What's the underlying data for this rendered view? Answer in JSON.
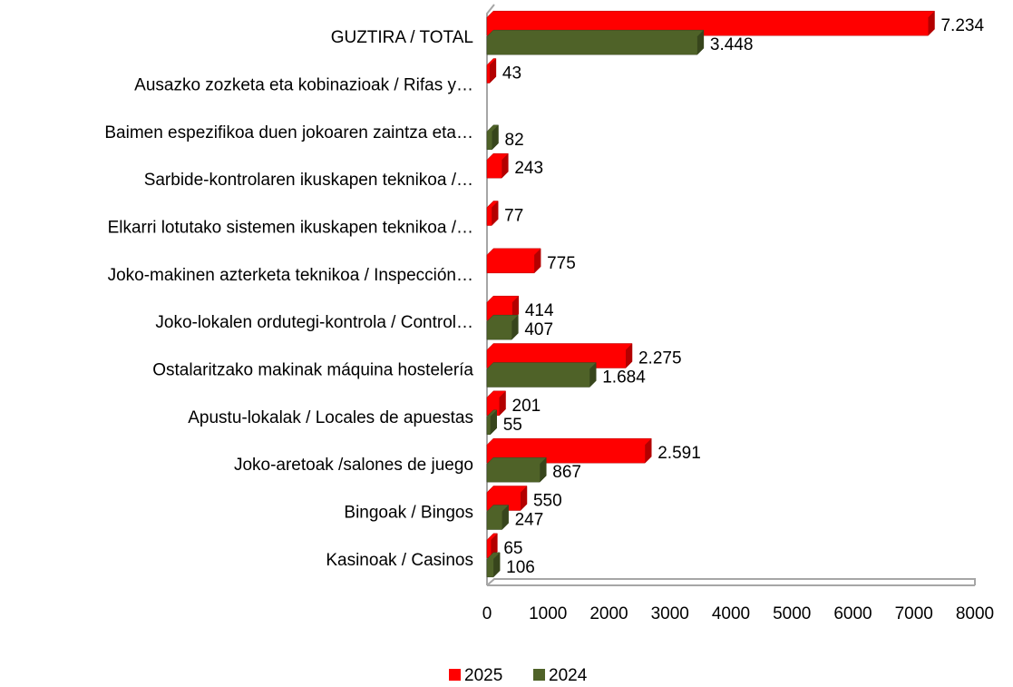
{
  "chart_data": {
    "type": "bar",
    "orientation": "horizontal",
    "categories": [
      "GUZTIRA  / TOTAL",
      "Ausazko zozketa eta kobinazioak / Rifas y…",
      "Baimen espezifikoa duen jokoaren zaintza eta…",
      "Sarbide-kontrolaren ikuskapen teknikoa /…",
      "Elkarri lotutako sistemen ikuskapen teknikoa /…",
      "Joko-makinen azterketa teknikoa / Inspección…",
      "Joko-lokalen ordutegi-kontrola / Control…",
      "Ostalaritzako makinak máquina hostelería",
      "Apustu-lokalak / Locales de apuestas",
      "Joko-aretoak /salones de juego",
      "Bingoak / Bingos",
      "Kasinoak / Casinos"
    ],
    "series": [
      {
        "name": "2025",
        "color": "#ff0000",
        "values": [
          7234,
          43,
          null,
          243,
          77,
          775,
          414,
          2275,
          201,
          2591,
          550,
          65
        ],
        "value_labels": [
          "7.234",
          "43",
          null,
          "243",
          "77",
          "775",
          "414",
          "2.275",
          "201",
          "2.591",
          "550",
          "65"
        ]
      },
      {
        "name": "2024",
        "color": "#4f6228",
        "values": [
          3448,
          null,
          82,
          null,
          null,
          null,
          407,
          1684,
          55,
          867,
          247,
          106
        ],
        "value_labels": [
          "3.448",
          null,
          "82",
          null,
          null,
          null,
          "407",
          "1.684",
          "55",
          "867",
          "247",
          "106"
        ]
      }
    ],
    "xlim": [
      0,
      8000
    ],
    "xticks": [
      0,
      1000,
      2000,
      3000,
      4000,
      5000,
      6000,
      7000,
      8000
    ],
    "legend": "bottom"
  }
}
